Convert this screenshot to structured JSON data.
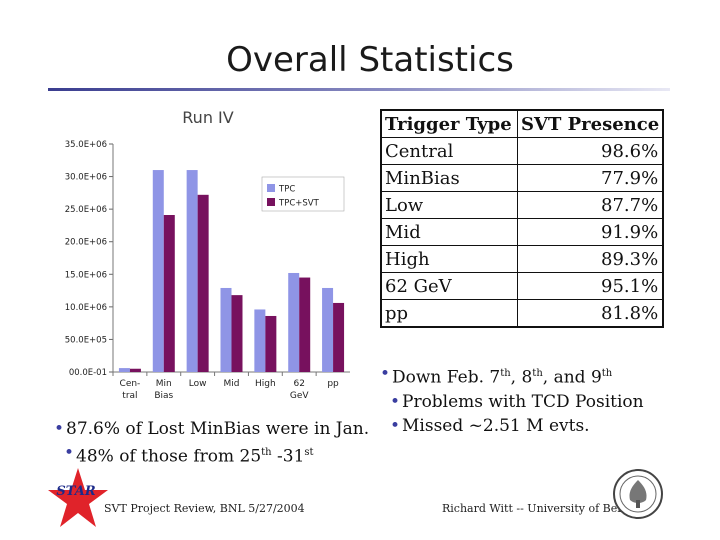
{
  "slide": {
    "title": "Overall Statistics"
  },
  "chart_data": {
    "type": "bar",
    "title": "Run IV",
    "categories": [
      {
        "line1": "Cen-",
        "line2": "tral"
      },
      {
        "line1": "Min",
        "line2": "Bias"
      },
      {
        "line1": "Low",
        "line2": ""
      },
      {
        "line1": "Mid",
        "line2": ""
      },
      {
        "line1": "High",
        "line2": ""
      },
      {
        "line1": "62",
        "line2": "GeV"
      },
      {
        "line1": "pp",
        "line2": ""
      }
    ],
    "series": [
      {
        "name": "TPC",
        "color": "#8f95e6",
        "values": [
          600000.0,
          31000000.0,
          31000000.0,
          12900000.0,
          9600000.0,
          15200000.0,
          12900000.0
        ]
      },
      {
        "name": "TPC+SVT",
        "color": "#77115e",
        "values": [
          500000.0,
          24100000.0,
          27200000.0,
          11800000.0,
          8600000.0,
          14500000.0,
          10600000.0
        ]
      }
    ],
    "yticks": [
      "00.0E-01",
      "50.0E+05",
      "10.0E+06",
      "15.0E+06",
      "20.0E+06",
      "25.0E+06",
      "30.0E+06",
      "35.0E+06"
    ],
    "ylim": [
      0,
      35000000
    ],
    "legend_position": "top-right",
    "grid": false
  },
  "table": {
    "headers": [
      "Trigger Type",
      "SVT Presence"
    ],
    "rows": [
      {
        "type": "Central",
        "presence": "98.6%"
      },
      {
        "type": "MinBias",
        "presence": "77.9%"
      },
      {
        "type": "Low",
        "presence": "87.7%"
      },
      {
        "type": "Mid",
        "presence": "91.9%"
      },
      {
        "type": "High",
        "presence": "89.3%"
      },
      {
        "type": "62 GeV",
        "presence": "95.1%"
      },
      {
        "type": "pp",
        "presence": "81.8%"
      }
    ]
  },
  "notes_right": {
    "down_prefix": "Down Feb. 7",
    "down_sup1": "th",
    "down_mid1": ", 8",
    "down_sup2": "th",
    "down_mid2": ", and 9",
    "down_sup3": "th",
    "tcd": "Problems with TCD Position",
    "missed": "Missed ~2.51 M evts."
  },
  "notes_left": {
    "lost": "87.6% of Lost MinBias were in Jan.",
    "those_prefix": "48% of those from 25",
    "those_sup1": "th",
    "those_mid": " -31",
    "those_sup2": "st"
  },
  "footer": {
    "left": "SVT Project Review, BNL 5/27/2004",
    "right": "Richard Witt -- University of Bern",
    "logo_text": "STAR"
  },
  "colors": {
    "bullet": "#3a3ea0",
    "star_logo": "#e0232a",
    "title_rule": "#3a3d8f"
  }
}
